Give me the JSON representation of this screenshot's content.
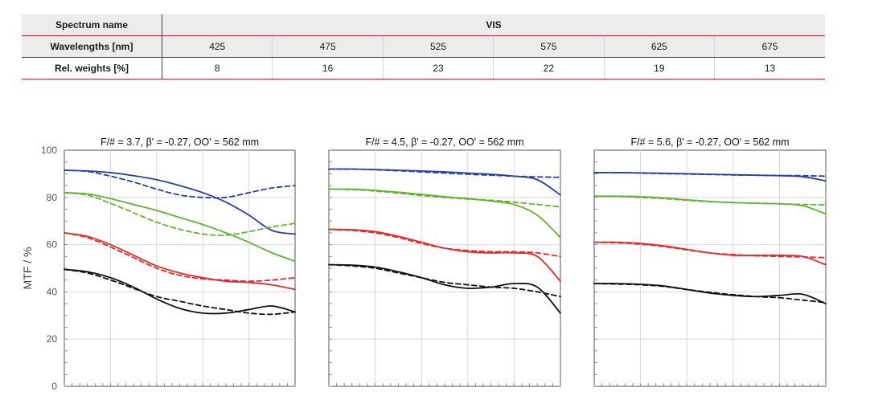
{
  "table": {
    "spectrum_label": "Spectrum name",
    "spectrum_value": "VIS",
    "wavelengths_label": "Wavelengths [nm]",
    "wavelengths": [
      "425",
      "475",
      "525",
      "575",
      "625",
      "675"
    ],
    "weights_label": "Rel. weights [%]",
    "weights": [
      "8",
      "16",
      "23",
      "22",
      "19",
      "13"
    ]
  },
  "chart_data": [
    {
      "type": "line",
      "title": "F/# = 3.7, β' = -0.27, OO' = 562 mm",
      "ylabel": "MTF / %",
      "xlim": [
        0,
        1
      ],
      "ylim": [
        0,
        100
      ],
      "yticks": [
        "0",
        "20",
        "40",
        "60",
        "80",
        "100"
      ],
      "grid": true,
      "series": [
        {
          "color": "#2b3f9e",
          "style": "solid",
          "x": [
            0,
            0.1,
            0.2,
            0.3,
            0.4,
            0.5,
            0.6,
            0.7,
            0.8,
            0.9,
            1.0
          ],
          "y": [
            91.5,
            91.2,
            90.5,
            89.2,
            87.5,
            85.0,
            82.0,
            78.0,
            72.5,
            66.0,
            64.5
          ]
        },
        {
          "color": "#2b3f9e",
          "style": "dashed",
          "x": [
            0,
            0.1,
            0.2,
            0.3,
            0.4,
            0.5,
            0.6,
            0.7,
            0.8,
            0.9,
            1.0
          ],
          "y": [
            91.5,
            91.0,
            89.0,
            86.5,
            83.5,
            81.0,
            80.0,
            80.0,
            82.0,
            84.0,
            85.0
          ]
        },
        {
          "color": "#66b032",
          "style": "solid",
          "x": [
            0,
            0.1,
            0.2,
            0.3,
            0.4,
            0.5,
            0.6,
            0.7,
            0.8,
            0.9,
            1.0
          ],
          "y": [
            82.0,
            81.5,
            79.5,
            77.0,
            74.5,
            71.5,
            68.5,
            65.0,
            61.0,
            56.5,
            53.0
          ]
        },
        {
          "color": "#66b032",
          "style": "dashed",
          "x": [
            0,
            0.1,
            0.2,
            0.3,
            0.4,
            0.5,
            0.6,
            0.7,
            0.8,
            0.9,
            1.0
          ],
          "y": [
            82.0,
            81.0,
            77.5,
            73.5,
            69.5,
            66.5,
            64.5,
            64.0,
            65.5,
            67.5,
            69.0
          ]
        },
        {
          "color": "#e32b2b",
          "style": "solid",
          "x": [
            0,
            0.1,
            0.2,
            0.3,
            0.4,
            0.5,
            0.6,
            0.7,
            0.8,
            0.9,
            1.0
          ],
          "y": [
            65.0,
            63.5,
            60.0,
            55.5,
            51.0,
            48.0,
            46.0,
            44.5,
            44.0,
            43.0,
            41.0
          ]
        },
        {
          "color": "#e32b2b",
          "style": "dashed",
          "x": [
            0,
            0.1,
            0.2,
            0.3,
            0.4,
            0.5,
            0.6,
            0.7,
            0.8,
            0.9,
            1.0
          ],
          "y": [
            65.0,
            63.0,
            59.0,
            54.5,
            50.0,
            47.0,
            45.5,
            45.0,
            44.5,
            45.0,
            46.0
          ]
        },
        {
          "color": "#111111",
          "style": "solid",
          "x": [
            0,
            0.1,
            0.2,
            0.3,
            0.4,
            0.5,
            0.6,
            0.7,
            0.8,
            0.9,
            1.0
          ],
          "y": [
            49.5,
            48.5,
            46.0,
            42.0,
            37.0,
            33.0,
            31.0,
            31.0,
            32.5,
            34.0,
            31.5
          ]
        },
        {
          "color": "#111111",
          "style": "dashed",
          "x": [
            0,
            0.1,
            0.2,
            0.3,
            0.4,
            0.5,
            0.6,
            0.7,
            0.8,
            0.9,
            1.0
          ],
          "y": [
            49.5,
            48.0,
            45.0,
            41.5,
            38.0,
            36.0,
            34.0,
            32.5,
            31.0,
            30.5,
            31.5
          ]
        }
      ]
    },
    {
      "type": "line",
      "title": "F/# = 4.5, β' = -0.27, OO' = 562 mm",
      "xlim": [
        0,
        1
      ],
      "ylim": [
        0,
        100
      ],
      "grid": true,
      "series": [
        {
          "color": "#2b3f9e",
          "style": "solid",
          "x": [
            0,
            0.1,
            0.2,
            0.3,
            0.4,
            0.5,
            0.6,
            0.7,
            0.8,
            0.9,
            1.0
          ],
          "y": [
            92.0,
            92.0,
            91.8,
            91.5,
            91.2,
            90.8,
            90.3,
            89.8,
            89.0,
            87.5,
            81.0
          ]
        },
        {
          "color": "#2b3f9e",
          "style": "dashed",
          "x": [
            0,
            0.1,
            0.2,
            0.3,
            0.4,
            0.5,
            0.6,
            0.7,
            0.8,
            0.9,
            1.0
          ],
          "y": [
            92.0,
            92.0,
            91.7,
            91.3,
            90.8,
            90.3,
            89.8,
            89.4,
            89.0,
            88.7,
            88.5
          ]
        },
        {
          "color": "#66b032",
          "style": "solid",
          "x": [
            0,
            0.1,
            0.2,
            0.3,
            0.4,
            0.5,
            0.6,
            0.7,
            0.8,
            0.9,
            1.0
          ],
          "y": [
            83.5,
            83.5,
            83.0,
            82.2,
            81.3,
            80.3,
            79.5,
            78.5,
            77.0,
            72.5,
            63.0
          ]
        },
        {
          "color": "#66b032",
          "style": "dashed",
          "x": [
            0,
            0.1,
            0.2,
            0.3,
            0.4,
            0.5,
            0.6,
            0.7,
            0.8,
            0.9,
            1.0
          ],
          "y": [
            83.5,
            83.3,
            82.7,
            81.8,
            80.8,
            80.0,
            79.3,
            78.8,
            78.0,
            77.0,
            76.0
          ]
        },
        {
          "color": "#e32b2b",
          "style": "solid",
          "x": [
            0,
            0.1,
            0.2,
            0.3,
            0.4,
            0.5,
            0.6,
            0.7,
            0.8,
            0.9,
            1.0
          ],
          "y": [
            66.5,
            66.3,
            65.5,
            63.5,
            61.0,
            58.5,
            57.0,
            56.5,
            56.5,
            55.0,
            44.5
          ]
        },
        {
          "color": "#e32b2b",
          "style": "dashed",
          "x": [
            0,
            0.1,
            0.2,
            0.3,
            0.4,
            0.5,
            0.6,
            0.7,
            0.8,
            0.9,
            1.0
          ],
          "y": [
            66.5,
            66.0,
            65.0,
            63.0,
            60.5,
            58.5,
            57.5,
            57.0,
            57.0,
            56.5,
            55.0
          ]
        },
        {
          "color": "#111111",
          "style": "solid",
          "x": [
            0,
            0.1,
            0.2,
            0.3,
            0.4,
            0.5,
            0.6,
            0.7,
            0.8,
            0.9,
            1.0
          ],
          "y": [
            51.5,
            51.3,
            50.5,
            48.5,
            46.0,
            43.0,
            41.5,
            42.0,
            43.5,
            42.0,
            31.0
          ]
        },
        {
          "color": "#111111",
          "style": "dashed",
          "x": [
            0,
            0.1,
            0.2,
            0.3,
            0.4,
            0.5,
            0.6,
            0.7,
            0.8,
            0.9,
            1.0
          ],
          "y": [
            51.5,
            51.0,
            50.0,
            48.0,
            46.0,
            44.0,
            43.0,
            42.0,
            41.5,
            40.0,
            38.0
          ]
        }
      ]
    },
    {
      "type": "line",
      "title": "F/# = 5.6, β' = -0.27, OO' = 562 mm",
      "xlim": [
        0,
        1
      ],
      "ylim": [
        0,
        100
      ],
      "grid": true,
      "series": [
        {
          "color": "#2b3f9e",
          "style": "solid",
          "x": [
            0,
            0.1,
            0.2,
            0.3,
            0.4,
            0.5,
            0.6,
            0.7,
            0.8,
            0.9,
            1.0
          ],
          "y": [
            90.5,
            90.5,
            90.4,
            90.2,
            90.0,
            89.8,
            89.6,
            89.4,
            89.2,
            88.8,
            87.0
          ]
        },
        {
          "color": "#2b3f9e",
          "style": "dashed",
          "x": [
            0,
            0.1,
            0.2,
            0.3,
            0.4,
            0.5,
            0.6,
            0.7,
            0.8,
            0.9,
            1.0
          ],
          "y": [
            90.5,
            90.5,
            90.3,
            90.1,
            89.9,
            89.7,
            89.5,
            89.4,
            89.3,
            89.2,
            89.0
          ]
        },
        {
          "color": "#66b032",
          "style": "solid",
          "x": [
            0,
            0.1,
            0.2,
            0.3,
            0.4,
            0.5,
            0.6,
            0.7,
            0.8,
            0.9,
            1.0
          ],
          "y": [
            80.5,
            80.5,
            80.3,
            79.8,
            79.0,
            78.3,
            77.8,
            77.5,
            77.3,
            76.5,
            73.0
          ]
        },
        {
          "color": "#66b032",
          "style": "dashed",
          "x": [
            0,
            0.1,
            0.2,
            0.3,
            0.4,
            0.5,
            0.6,
            0.7,
            0.8,
            0.9,
            1.0
          ],
          "y": [
            80.5,
            80.4,
            80.0,
            79.5,
            78.8,
            78.2,
            77.8,
            77.5,
            77.3,
            77.0,
            76.8
          ]
        },
        {
          "color": "#e32b2b",
          "style": "solid",
          "x": [
            0,
            0.1,
            0.2,
            0.3,
            0.4,
            0.5,
            0.6,
            0.7,
            0.8,
            0.9,
            1.0
          ],
          "y": [
            61.0,
            61.0,
            60.5,
            59.5,
            58.0,
            56.5,
            55.5,
            55.5,
            55.5,
            55.0,
            51.5
          ]
        },
        {
          "color": "#e32b2b",
          "style": "dashed",
          "x": [
            0,
            0.1,
            0.2,
            0.3,
            0.4,
            0.5,
            0.6,
            0.7,
            0.8,
            0.9,
            1.0
          ],
          "y": [
            61.0,
            60.8,
            60.2,
            59.2,
            57.8,
            56.5,
            55.8,
            55.3,
            55.0,
            54.8,
            54.5
          ]
        },
        {
          "color": "#111111",
          "style": "solid",
          "x": [
            0,
            0.1,
            0.2,
            0.3,
            0.4,
            0.5,
            0.6,
            0.7,
            0.8,
            0.9,
            1.0
          ],
          "y": [
            43.5,
            43.5,
            43.2,
            42.5,
            41.0,
            39.5,
            38.5,
            38.0,
            38.5,
            39.0,
            35.0
          ]
        },
        {
          "color": "#111111",
          "style": "dashed",
          "x": [
            0,
            0.1,
            0.2,
            0.3,
            0.4,
            0.5,
            0.6,
            0.7,
            0.8,
            0.9,
            1.0
          ],
          "y": [
            43.5,
            43.3,
            43.0,
            42.3,
            41.0,
            39.8,
            38.8,
            38.0,
            37.5,
            36.5,
            35.5
          ]
        }
      ]
    }
  ]
}
